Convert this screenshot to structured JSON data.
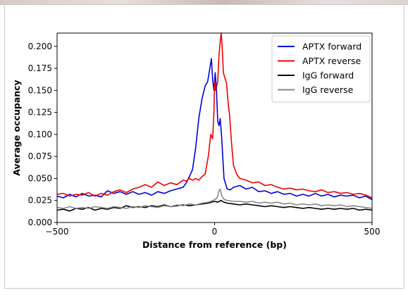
{
  "chart_data": {
    "type": "line",
    "title": "",
    "xlabel": "Distance from reference (bp)",
    "ylabel": "Average occupancy",
    "xlim": [
      -500,
      500
    ],
    "ylim": [
      0.0,
      0.215
    ],
    "x_ticks": [
      -500,
      0,
      500
    ],
    "x_tick_labels": [
      "−500",
      "0",
      "500"
    ],
    "y_ticks": [
      0.0,
      0.025,
      0.05,
      0.075,
      0.1,
      0.125,
      0.15,
      0.175,
      0.2
    ],
    "y_tick_labels": [
      "0.000",
      "0.025",
      "0.050",
      "0.075",
      "0.100",
      "0.125",
      "0.150",
      "0.175",
      "0.200"
    ],
    "grid": false,
    "legend_position": "top-right",
    "series": [
      {
        "name": "APTX forward",
        "color": "#0000dd",
        "points": [
          [
            -500,
            0.03
          ],
          [
            -480,
            0.028
          ],
          [
            -460,
            0.032
          ],
          [
            -440,
            0.029
          ],
          [
            -420,
            0.033
          ],
          [
            -400,
            0.03
          ],
          [
            -380,
            0.031
          ],
          [
            -360,
            0.029
          ],
          [
            -340,
            0.036
          ],
          [
            -320,
            0.033
          ],
          [
            -300,
            0.035
          ],
          [
            -280,
            0.032
          ],
          [
            -260,
            0.035
          ],
          [
            -240,
            0.032
          ],
          [
            -220,
            0.034
          ],
          [
            -200,
            0.031
          ],
          [
            -180,
            0.035
          ],
          [
            -160,
            0.033
          ],
          [
            -140,
            0.036
          ],
          [
            -120,
            0.038
          ],
          [
            -100,
            0.04
          ],
          [
            -90,
            0.045
          ],
          [
            -80,
            0.052
          ],
          [
            -70,
            0.06
          ],
          [
            -60,
            0.085
          ],
          [
            -50,
            0.118
          ],
          [
            -40,
            0.14
          ],
          [
            -30,
            0.155
          ],
          [
            -22,
            0.16
          ],
          [
            -15,
            0.175
          ],
          [
            -10,
            0.186
          ],
          [
            -6,
            0.162
          ],
          [
            -2,
            0.15
          ],
          [
            2,
            0.17
          ],
          [
            6,
            0.15
          ],
          [
            10,
            0.115
          ],
          [
            14,
            0.11
          ],
          [
            18,
            0.118
          ],
          [
            22,
            0.1
          ],
          [
            26,
            0.075
          ],
          [
            30,
            0.05
          ],
          [
            35,
            0.044
          ],
          [
            40,
            0.038
          ],
          [
            50,
            0.037
          ],
          [
            60,
            0.04
          ],
          [
            80,
            0.042
          ],
          [
            100,
            0.038
          ],
          [
            120,
            0.04
          ],
          [
            140,
            0.035
          ],
          [
            160,
            0.036
          ],
          [
            180,
            0.033
          ],
          [
            200,
            0.035
          ],
          [
            220,
            0.032
          ],
          [
            240,
            0.033
          ],
          [
            260,
            0.03
          ],
          [
            280,
            0.032
          ],
          [
            300,
            0.03
          ],
          [
            320,
            0.033
          ],
          [
            340,
            0.03
          ],
          [
            360,
            0.032
          ],
          [
            380,
            0.029
          ],
          [
            400,
            0.031
          ],
          [
            420,
            0.03
          ],
          [
            440,
            0.031
          ],
          [
            460,
            0.028
          ],
          [
            480,
            0.03
          ],
          [
            500,
            0.026
          ]
        ]
      },
      {
        "name": "APTX reverse",
        "color": "#ee0000",
        "points": [
          [
            -500,
            0.032
          ],
          [
            -480,
            0.033
          ],
          [
            -460,
            0.03
          ],
          [
            -440,
            0.032
          ],
          [
            -420,
            0.031
          ],
          [
            -400,
            0.034
          ],
          [
            -380,
            0.03
          ],
          [
            -360,
            0.033
          ],
          [
            -340,
            0.031
          ],
          [
            -320,
            0.035
          ],
          [
            -300,
            0.037
          ],
          [
            -280,
            0.034
          ],
          [
            -260,
            0.038
          ],
          [
            -240,
            0.04
          ],
          [
            -220,
            0.043
          ],
          [
            -200,
            0.04
          ],
          [
            -180,
            0.046
          ],
          [
            -160,
            0.042
          ],
          [
            -140,
            0.045
          ],
          [
            -120,
            0.043
          ],
          [
            -100,
            0.048
          ],
          [
            -90,
            0.047
          ],
          [
            -80,
            0.05
          ],
          [
            -70,
            0.048
          ],
          [
            -60,
            0.05
          ],
          [
            -50,
            0.048
          ],
          [
            -40,
            0.052
          ],
          [
            -30,
            0.055
          ],
          [
            -20,
            0.075
          ],
          [
            -12,
            0.1
          ],
          [
            -6,
            0.095
          ],
          [
            -2,
            0.125
          ],
          [
            0,
            0.16
          ],
          [
            3,
            0.15
          ],
          [
            7,
            0.155
          ],
          [
            10,
            0.16
          ],
          [
            14,
            0.19
          ],
          [
            18,
            0.205
          ],
          [
            21,
            0.215
          ],
          [
            24,
            0.2
          ],
          [
            28,
            0.17
          ],
          [
            32,
            0.165
          ],
          [
            38,
            0.158
          ],
          [
            42,
            0.14
          ],
          [
            48,
            0.12
          ],
          [
            54,
            0.09
          ],
          [
            60,
            0.065
          ],
          [
            70,
            0.055
          ],
          [
            80,
            0.05
          ],
          [
            100,
            0.048
          ],
          [
            120,
            0.045
          ],
          [
            140,
            0.046
          ],
          [
            160,
            0.042
          ],
          [
            180,
            0.043
          ],
          [
            200,
            0.04
          ],
          [
            220,
            0.038
          ],
          [
            240,
            0.039
          ],
          [
            260,
            0.037
          ],
          [
            280,
            0.038
          ],
          [
            300,
            0.036
          ],
          [
            320,
            0.035
          ],
          [
            340,
            0.037
          ],
          [
            360,
            0.034
          ],
          [
            380,
            0.035
          ],
          [
            400,
            0.033
          ],
          [
            420,
            0.034
          ],
          [
            440,
            0.032
          ],
          [
            460,
            0.033
          ],
          [
            480,
            0.031
          ],
          [
            500,
            0.028
          ]
        ]
      },
      {
        "name": "IgG forward",
        "color": "#000000",
        "points": [
          [
            -500,
            0.014
          ],
          [
            -480,
            0.015
          ],
          [
            -460,
            0.013
          ],
          [
            -440,
            0.016
          ],
          [
            -420,
            0.015
          ],
          [
            -400,
            0.017
          ],
          [
            -380,
            0.014
          ],
          [
            -360,
            0.016
          ],
          [
            -340,
            0.015
          ],
          [
            -320,
            0.017
          ],
          [
            -300,
            0.016
          ],
          [
            -280,
            0.019
          ],
          [
            -260,
            0.017
          ],
          [
            -240,
            0.018
          ],
          [
            -220,
            0.017
          ],
          [
            -200,
            0.019
          ],
          [
            -180,
            0.018
          ],
          [
            -160,
            0.02
          ],
          [
            -140,
            0.018
          ],
          [
            -120,
            0.019
          ],
          [
            -100,
            0.02
          ],
          [
            -80,
            0.019
          ],
          [
            -60,
            0.02
          ],
          [
            -40,
            0.021
          ],
          [
            -20,
            0.022
          ],
          [
            0,
            0.024
          ],
          [
            10,
            0.023
          ],
          [
            20,
            0.025
          ],
          [
            30,
            0.023
          ],
          [
            40,
            0.022
          ],
          [
            60,
            0.021
          ],
          [
            80,
            0.02
          ],
          [
            100,
            0.021
          ],
          [
            120,
            0.02
          ],
          [
            140,
            0.019
          ],
          [
            160,
            0.018
          ],
          [
            180,
            0.019
          ],
          [
            200,
            0.018
          ],
          [
            220,
            0.017
          ],
          [
            240,
            0.018
          ],
          [
            260,
            0.017
          ],
          [
            280,
            0.016
          ],
          [
            300,
            0.017
          ],
          [
            320,
            0.016
          ],
          [
            340,
            0.015
          ],
          [
            360,
            0.016
          ],
          [
            380,
            0.015
          ],
          [
            400,
            0.016
          ],
          [
            420,
            0.015
          ],
          [
            440,
            0.016
          ],
          [
            460,
            0.014
          ],
          [
            480,
            0.015
          ],
          [
            500,
            0.014
          ]
        ]
      },
      {
        "name": "IgG reverse",
        "color": "#888888",
        "points": [
          [
            -500,
            0.017
          ],
          [
            -480,
            0.016
          ],
          [
            -460,
            0.018
          ],
          [
            -440,
            0.016
          ],
          [
            -420,
            0.017
          ],
          [
            -400,
            0.016
          ],
          [
            -380,
            0.018
          ],
          [
            -360,
            0.017
          ],
          [
            -340,
            0.016
          ],
          [
            -320,
            0.018
          ],
          [
            -300,
            0.017
          ],
          [
            -280,
            0.016
          ],
          [
            -260,
            0.018
          ],
          [
            -240,
            0.017
          ],
          [
            -220,
            0.019
          ],
          [
            -200,
            0.018
          ],
          [
            -180,
            0.017
          ],
          [
            -160,
            0.019
          ],
          [
            -140,
            0.018
          ],
          [
            -120,
            0.02
          ],
          [
            -100,
            0.019
          ],
          [
            -80,
            0.021
          ],
          [
            -60,
            0.02
          ],
          [
            -40,
            0.022
          ],
          [
            -20,
            0.023
          ],
          [
            -5,
            0.025
          ],
          [
            5,
            0.027
          ],
          [
            10,
            0.03
          ],
          [
            14,
            0.036
          ],
          [
            18,
            0.038
          ],
          [
            22,
            0.032
          ],
          [
            26,
            0.028
          ],
          [
            32,
            0.026
          ],
          [
            40,
            0.025
          ],
          [
            60,
            0.024
          ],
          [
            80,
            0.024
          ],
          [
            100,
            0.023
          ],
          [
            120,
            0.024
          ],
          [
            140,
            0.022
          ],
          [
            160,
            0.023
          ],
          [
            180,
            0.022
          ],
          [
            200,
            0.023
          ],
          [
            220,
            0.021
          ],
          [
            240,
            0.022
          ],
          [
            260,
            0.02
          ],
          [
            280,
            0.021
          ],
          [
            300,
            0.02
          ],
          [
            320,
            0.021
          ],
          [
            340,
            0.019
          ],
          [
            360,
            0.02
          ],
          [
            380,
            0.019
          ],
          [
            400,
            0.02
          ],
          [
            420,
            0.018
          ],
          [
            440,
            0.019
          ],
          [
            460,
            0.018
          ],
          [
            480,
            0.017
          ],
          [
            500,
            0.016
          ]
        ]
      }
    ]
  }
}
